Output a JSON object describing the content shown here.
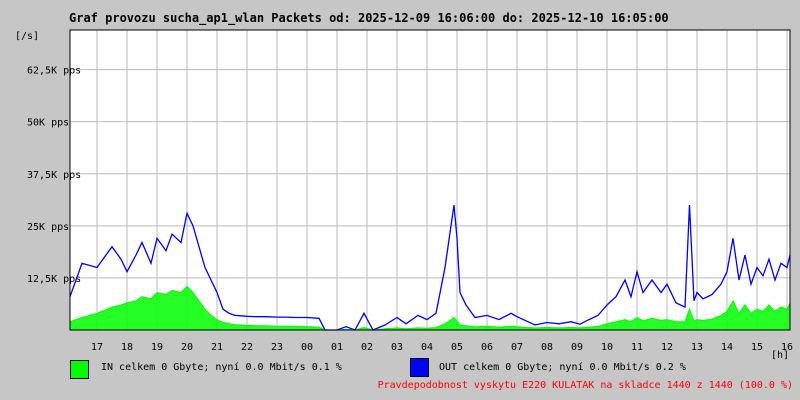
{
  "chart_data": {
    "type": "area",
    "title": "Graf provozu sucha_ap1_wlan Packets od: 2025-12-09 16:06:00 do: 2025-12-10 16:05:00",
    "ylabel": "[/s]",
    "xlabel": "[h]",
    "ylim": [
      0,
      72000
    ],
    "y_ticks": [
      {
        "value": 12500,
        "label": "12,5K pps"
      },
      {
        "value": 25000,
        "label": "25K pps"
      },
      {
        "value": 37500,
        "label": "37,5K pps"
      },
      {
        "value": 50000,
        "label": "50K pps"
      },
      {
        "value": 62500,
        "label": "62,5K pps"
      }
    ],
    "xlim": [
      16.1,
      40.1
    ],
    "x_ticks": [
      {
        "value": 17,
        "label": "17"
      },
      {
        "value": 18,
        "label": "18"
      },
      {
        "value": 19,
        "label": "19"
      },
      {
        "value": 20,
        "label": "20"
      },
      {
        "value": 21,
        "label": "21"
      },
      {
        "value": 22,
        "label": "22"
      },
      {
        "value": 23,
        "label": "23"
      },
      {
        "value": 24,
        "label": "00"
      },
      {
        "value": 25,
        "label": "01"
      },
      {
        "value": 26,
        "label": "02"
      },
      {
        "value": 27,
        "label": "03"
      },
      {
        "value": 28,
        "label": "04"
      },
      {
        "value": 29,
        "label": "05"
      },
      {
        "value": 30,
        "label": "06"
      },
      {
        "value": 31,
        "label": "07"
      },
      {
        "value": 32,
        "label": "08"
      },
      {
        "value": 33,
        "label": "09"
      },
      {
        "value": 34,
        "label": "10"
      },
      {
        "value": 35,
        "label": "11"
      },
      {
        "value": 36,
        "label": "12"
      },
      {
        "value": 37,
        "label": "13"
      },
      {
        "value": 38,
        "label": "14"
      },
      {
        "value": 39,
        "label": "15"
      },
      {
        "value": 40,
        "label": "16"
      }
    ],
    "grid": true,
    "series": [
      {
        "name": "OUT",
        "color": "#0000ff",
        "render": "line",
        "x": [
          16.1,
          16.5,
          17.0,
          17.5,
          17.8,
          18.0,
          18.3,
          18.5,
          18.8,
          19.0,
          19.3,
          19.5,
          19.8,
          20.0,
          20.2,
          20.4,
          20.6,
          20.8,
          21.0,
          21.2,
          21.4,
          21.6,
          21.8,
          22.0,
          22.3,
          22.6,
          23.0,
          23.3,
          23.6,
          24.0,
          24.4,
          24.6,
          25.0,
          25.3,
          25.6,
          25.9,
          26.2,
          26.6,
          27.0,
          27.3,
          27.7,
          28.0,
          28.3,
          28.6,
          28.9,
          29.0,
          29.1,
          29.3,
          29.6,
          30.0,
          30.4,
          30.8,
          31.0,
          31.3,
          31.6,
          32.0,
          32.4,
          32.8,
          33.1,
          33.4,
          33.7,
          34.0,
          34.3,
          34.6,
          34.8,
          35.0,
          35.2,
          35.5,
          35.8,
          36.0,
          36.3,
          36.6,
          36.75,
          36.9,
          37.0,
          37.2,
          37.5,
          37.8,
          38.0,
          38.2,
          38.4,
          38.6,
          38.8,
          39.0,
          39.2,
          39.4,
          39.6,
          39.8,
          40.0,
          40.1
        ],
        "y": [
          8000,
          16000,
          15000,
          20000,
          17000,
          14000,
          18000,
          21000,
          16000,
          22000,
          19000,
          23000,
          21000,
          28000,
          25000,
          20000,
          15000,
          12000,
          9000,
          5000,
          4000,
          3500,
          3400,
          3300,
          3200,
          3200,
          3100,
          3100,
          3000,
          3000,
          2800,
          0,
          0,
          800,
          0,
          4000,
          0,
          1200,
          3000,
          1500,
          3500,
          2500,
          4000,
          15000,
          30000,
          22000,
          9000,
          6000,
          3000,
          3500,
          2500,
          4000,
          3200,
          2200,
          1200,
          1800,
          1500,
          2000,
          1400,
          2500,
          3500,
          6000,
          8000,
          12000,
          8000,
          14000,
          9000,
          12000,
          9000,
          11000,
          6500,
          5500,
          30000,
          7000,
          9000,
          7500,
          8500,
          11000,
          14000,
          22000,
          12000,
          18000,
          11000,
          15000,
          13000,
          17000,
          12000,
          16000,
          15000,
          18000
        ]
      },
      {
        "name": "IN",
        "color": "#00ff00",
        "render": "area",
        "x": [
          16.1,
          16.5,
          17.0,
          17.5,
          17.8,
          18.0,
          18.3,
          18.5,
          18.8,
          19.0,
          19.3,
          19.5,
          19.8,
          20.0,
          20.2,
          20.4,
          20.6,
          20.8,
          21.0,
          21.2,
          21.4,
          21.6,
          21.8,
          22.0,
          22.3,
          22.6,
          23.0,
          23.3,
          23.6,
          24.0,
          24.4,
          24.6,
          25.0,
          25.3,
          25.6,
          25.9,
          26.2,
          26.6,
          27.0,
          27.3,
          27.7,
          28.0,
          28.3,
          28.6,
          28.9,
          29.0,
          29.1,
          29.3,
          29.6,
          30.0,
          30.4,
          30.8,
          31.0,
          31.3,
          31.6,
          32.0,
          32.4,
          32.8,
          33.1,
          33.4,
          33.7,
          34.0,
          34.3,
          34.6,
          34.8,
          35.0,
          35.2,
          35.5,
          35.8,
          36.0,
          36.3,
          36.6,
          36.75,
          36.9,
          37.0,
          37.2,
          37.5,
          37.8,
          38.0,
          38.2,
          38.4,
          38.6,
          38.8,
          39.0,
          39.2,
          39.4,
          39.6,
          39.8,
          40.0,
          40.1
        ],
        "y": [
          2000,
          3000,
          4000,
          5500,
          6000,
          6500,
          7000,
          8000,
          7500,
          9000,
          8500,
          9500,
          9000,
          10500,
          9000,
          7000,
          5000,
          3500,
          2500,
          1800,
          1500,
          1300,
          1200,
          1100,
          1000,
          1000,
          900,
          900,
          900,
          800,
          700,
          0,
          0,
          200,
          0,
          600,
          0,
          300,
          500,
          300,
          500,
          400,
          600,
          1500,
          3000,
          2200,
          1200,
          1000,
          800,
          900,
          700,
          900,
          800,
          600,
          500,
          600,
          500,
          600,
          500,
          700,
          900,
          1500,
          2000,
          2500,
          2000,
          3000,
          2200,
          2800,
          2300,
          2500,
          2000,
          2000,
          5000,
          2200,
          2500,
          2300,
          2600,
          3500,
          4500,
          7000,
          4000,
          6000,
          4000,
          5000,
          4500,
          6000,
          4500,
          5500,
          5000,
          6500
        ]
      }
    ]
  },
  "legend": {
    "in_text": "IN celkem 0 Gbyte; nyní   0.0 Mbit/s 0.1 %",
    "in_color": "#00ff00",
    "out_text": "OUT celkem 0 Gbyte; nyní   0.0 Mbit/s 0.2 %",
    "out_color": "#0000ff"
  },
  "note": {
    "text": "Pravdepodobnost vyskytu E220 KULATAK na skladce 1440 z 1440 (100.0 %)",
    "color": "#ff0000"
  }
}
